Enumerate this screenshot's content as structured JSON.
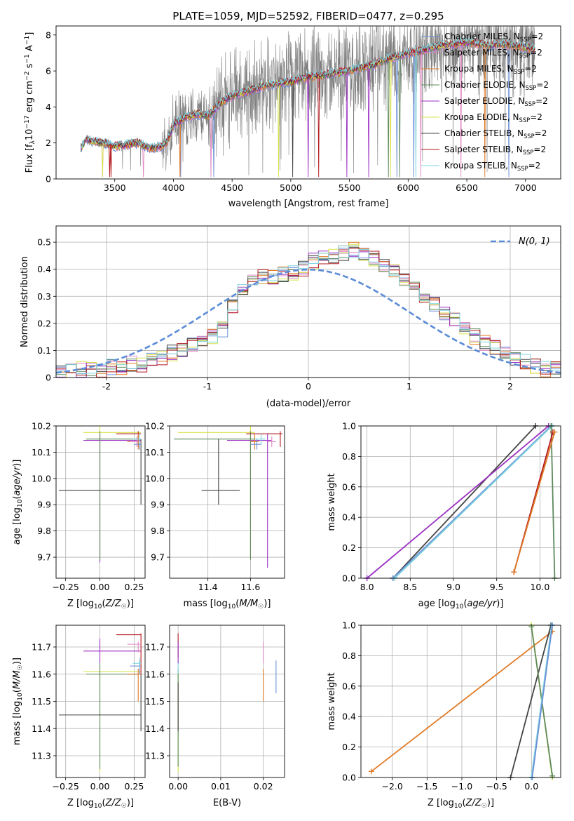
{
  "figure": {
    "title": "PLATE=1059, MJD=52592, FIBERID=0477, z=0.295"
  },
  "colors": {
    "Chabrier MILES": "#6a8fd6",
    "Salpeter MILES": "#e18ac4",
    "Kroupa MILES": "#e07b27",
    "Chabrier ELODIE": "#5e8a5e",
    "Salpeter ELODIE": "#9b30c2",
    "Kroupa ELODIE": "#d8e24a",
    "Chabrier STELIB": "#444444",
    "Salpeter STELIB": "#b3191f",
    "Kroupa STELIB": "#7fd3de",
    "data": "#7f7f7f",
    "normal": "#5b8bd6"
  },
  "chart_data": [
    {
      "id": "spectrum",
      "type": "line",
      "xlabel": "wavelength [Angstrom, rest frame]",
      "ylabel": "Flux [f_λ 10^-17 erg cm^-2 s^-1 A^-1]",
      "xlim": [
        3000,
        7300
      ],
      "ylim": [
        0,
        8.5
      ],
      "xticks": [
        3500,
        4000,
        4500,
        5000,
        5500,
        6000,
        6500,
        7000
      ],
      "yticks": [
        0,
        2,
        4,
        6,
        8
      ],
      "grid": false,
      "legend_position": "top-right",
      "legend": [
        {
          "name": "Chabrier MILES",
          "sub": "SSP",
          "suffix": "=2"
        },
        {
          "name": "Salpeter MILES",
          "sub": "SSP",
          "suffix": "=2"
        },
        {
          "name": "Kroupa MILES",
          "sub": "SSP",
          "suffix": "=2"
        },
        {
          "name": "Chabrier ELODIE",
          "sub": "SSP",
          "suffix": "=2"
        },
        {
          "name": "Salpeter ELODIE",
          "sub": "SSP",
          "suffix": "=2"
        },
        {
          "name": "Kroupa ELODIE",
          "sub": "SSP",
          "suffix": "=2"
        },
        {
          "name": "Chabrier STELIB",
          "sub": "SSP",
          "suffix": "=2"
        },
        {
          "name": "Salpeter STELIB",
          "sub": "SSP",
          "suffix": "=2"
        },
        {
          "name": "Kroupa STELIB",
          "sub": "SSP",
          "suffix": "=2"
        }
      ],
      "model_continuum": {
        "x": [
          3210,
          3260,
          3300,
          3400,
          3500,
          3600,
          3700,
          3800,
          3900,
          3950,
          4000,
          4100,
          4200,
          4300,
          4400,
          4500,
          4600,
          4700,
          4800,
          4900,
          5000,
          5100,
          5200,
          5300,
          5400,
          5500,
          5600,
          5700,
          5800,
          5900,
          6000,
          6100,
          6200,
          6300,
          6400,
          6500,
          6600,
          6700,
          6800,
          6900,
          7000,
          7080
        ],
        "y": [
          1.7,
          2.2,
          2.1,
          2.0,
          1.8,
          1.9,
          2.0,
          1.7,
          1.8,
          2.1,
          3.0,
          3.4,
          3.6,
          3.5,
          4.2,
          4.6,
          4.8,
          5.0,
          5.2,
          5.3,
          5.4,
          5.6,
          5.7,
          5.8,
          5.9,
          6.0,
          6.2,
          6.3,
          6.6,
          6.8,
          7.0,
          7.1,
          7.3,
          7.4,
          7.5,
          7.6,
          7.5,
          7.4,
          7.5,
          7.4,
          7.3,
          7.2
        ]
      }
    },
    {
      "id": "residuals",
      "type": "histogram",
      "xlabel": "(data-model)/error",
      "ylabel": "Normed distribution",
      "xlim": [
        -2.5,
        2.5
      ],
      "ylim": [
        0,
        0.56
      ],
      "xticks": [
        -2,
        -1,
        0,
        1,
        2
      ],
      "yticks": [
        0,
        0.1,
        0.2,
        0.3,
        0.4,
        0.5
      ],
      "grid": true,
      "legend_position": "top-right",
      "legend_label": "N(0, 1)",
      "bin_start": -2.5,
      "bin_width": 0.1,
      "envelope": [
        0.02,
        0.02,
        0.03,
        0.03,
        0.03,
        0.04,
        0.04,
        0.05,
        0.05,
        0.06,
        0.07,
        0.09,
        0.1,
        0.12,
        0.14,
        0.15,
        0.18,
        0.26,
        0.33,
        0.36,
        0.37,
        0.37,
        0.38,
        0.39,
        0.4,
        0.43,
        0.44,
        0.45,
        0.46,
        0.47,
        0.46,
        0.44,
        0.42,
        0.39,
        0.36,
        0.33,
        0.3,
        0.27,
        0.24,
        0.21,
        0.18,
        0.15,
        0.13,
        0.11,
        0.09,
        0.07,
        0.06,
        0.04,
        0.03,
        0.03
      ]
    },
    {
      "id": "age-Z",
      "type": "scatter",
      "xlabel": "Z [log10(Z/Z☉)]",
      "ylabel": "age [log10(age/yr)]",
      "xlim": [
        -0.32,
        0.33
      ],
      "ylim": [
        9.62,
        10.2
      ],
      "xticks": [
        -0.25,
        0,
        0.25
      ],
      "xtick_labels": [
        "−0.25",
        "0.00",
        "0.25"
      ],
      "yticks": [
        9.7,
        9.8,
        9.9,
        10.0,
        10.1,
        10.2
      ],
      "ytick_labels": [
        "9.7",
        "9.8",
        "9.9",
        "10.0",
        "10.1",
        "10.2"
      ],
      "grid": true
    },
    {
      "id": "age-mass",
      "type": "scatter",
      "xlabel": "mass [log10(M/M☉)]",
      "xlim": [
        11.22,
        11.76
      ],
      "ylim": [
        9.62,
        10.2
      ],
      "xticks": [
        11.4,
        11.6
      ],
      "xtick_labels": [
        "11.4",
        "11.6"
      ],
      "yticks": [
        9.7,
        9.8,
        9.9,
        10.0,
        10.1,
        10.2
      ],
      "ytick_labels": [
        "9.7",
        "9.8",
        "9.9",
        "10.0",
        "10.1",
        "10.2"
      ],
      "grid": true
    },
    {
      "id": "weight-age",
      "type": "line",
      "xlabel": "age [log10(age/yr)]",
      "ylabel": "mass weight",
      "xlim": [
        7.93,
        10.24
      ],
      "ylim": [
        0,
        1
      ],
      "xticks": [
        8.0,
        8.5,
        9.0,
        9.5,
        10.0
      ],
      "xtick_labels": [
        "8.0",
        "8.5",
        "9.0",
        "9.5",
        "10.0"
      ],
      "yticks": [
        0,
        0.2,
        0.4,
        0.6,
        0.8,
        1.0
      ],
      "ytick_labels": [
        "0.0",
        "0.2",
        "0.4",
        "0.6",
        "0.8",
        "1.0"
      ],
      "grid": true,
      "series": [
        {
          "color": "Chabrier STELIB",
          "x": [
            8.3,
            9.95
          ],
          "y": [
            0.0,
            1.0
          ]
        },
        {
          "color": "Salpeter ELODIE",
          "x": [
            8.0,
            10.1
          ],
          "y": [
            0.0,
            1.0
          ]
        },
        {
          "color": "Chabrier MILES",
          "x": [
            8.3,
            10.13
          ],
          "y": [
            0.0,
            1.0
          ]
        },
        {
          "color": "Kroupa STELIB",
          "x": [
            8.32,
            10.14
          ],
          "y": [
            0.0,
            1.0
          ]
        },
        {
          "color": "Chabrier ELODIE",
          "x": [
            10.13,
            10.17
          ],
          "y": [
            1.0,
            0.0
          ]
        },
        {
          "color": "Salpeter STELIB",
          "x": [
            9.7,
            10.15
          ],
          "y": [
            0.04,
            0.96
          ]
        },
        {
          "color": "Kroupa MILES",
          "x": [
            9.7,
            10.17
          ],
          "y": [
            0.04,
            0.96
          ]
        }
      ]
    },
    {
      "id": "mass-Z",
      "type": "scatter",
      "xlabel": "Z [log10(Z/Z☉)]",
      "ylabel": "mass [log10(M/M☉)]",
      "xlim": [
        -0.32,
        0.33
      ],
      "ylim": [
        11.22,
        11.78
      ],
      "xticks": [
        -0.25,
        0,
        0.25
      ],
      "xtick_labels": [
        "−0.25",
        "0.00",
        "0.25"
      ],
      "yticks": [
        11.3,
        11.4,
        11.5,
        11.6,
        11.7
      ],
      "ytick_labels": [
        "11.3",
        "11.4",
        "11.5",
        "11.6",
        "11.7"
      ],
      "grid": true
    },
    {
      "id": "ebv",
      "type": "scatter",
      "xlabel": "E(B-V)",
      "xlim": [
        -0.002,
        0.025
      ],
      "ylim": [
        11.22,
        11.78
      ],
      "xticks": [
        0,
        0.01,
        0.02
      ],
      "xtick_labels": [
        "0.00",
        "0.01",
        "0.02"
      ],
      "yticks": [
        11.3,
        11.4,
        11.5,
        11.6,
        11.7
      ],
      "ytick_labels": [
        "11.3",
        "11.4",
        "11.5",
        "11.6",
        "11.7"
      ],
      "grid": true
    },
    {
      "id": "weight-Z",
      "type": "line",
      "xlabel": "Z [log10(Z/Z☉)]",
      "ylabel": "mass weight",
      "xlim": [
        -2.45,
        0.42
      ],
      "ylim": [
        0,
        1
      ],
      "xticks": [
        -2.0,
        -1.5,
        -1.0,
        -0.5,
        0.0
      ],
      "xtick_labels": [
        "−2.0",
        "−1.5",
        "−1.0",
        "−0.5",
        "0.0"
      ],
      "yticks": [
        0,
        0.2,
        0.4,
        0.6,
        0.8,
        1.0
      ],
      "ytick_labels": [
        "0.0",
        "0.2",
        "0.4",
        "0.6",
        "0.8",
        "1.0"
      ],
      "grid": true,
      "series": [
        {
          "color": "Kroupa MILES",
          "x": [
            -2.3,
            0.3
          ],
          "y": [
            0.04,
            0.96
          ]
        },
        {
          "color": "Chabrier STELIB",
          "x": [
            -0.3,
            0.28
          ],
          "y": [
            0.0,
            1.0
          ]
        },
        {
          "color": "Kroupa ELODIE",
          "x": [
            0.0,
            0.3
          ],
          "y": [
            1.0,
            0.0
          ]
        },
        {
          "color": "Chabrier ELODIE",
          "x": [
            0.0,
            0.3
          ],
          "y": [
            0.99,
            0.01
          ]
        },
        {
          "color": "Kroupa STELIB",
          "x": [
            0.0,
            0.29
          ],
          "y": [
            0.0,
            1.0
          ]
        },
        {
          "color": "Chabrier MILES",
          "x": [
            0.01,
            0.3
          ],
          "y": [
            0.0,
            1.0
          ]
        }
      ]
    }
  ]
}
